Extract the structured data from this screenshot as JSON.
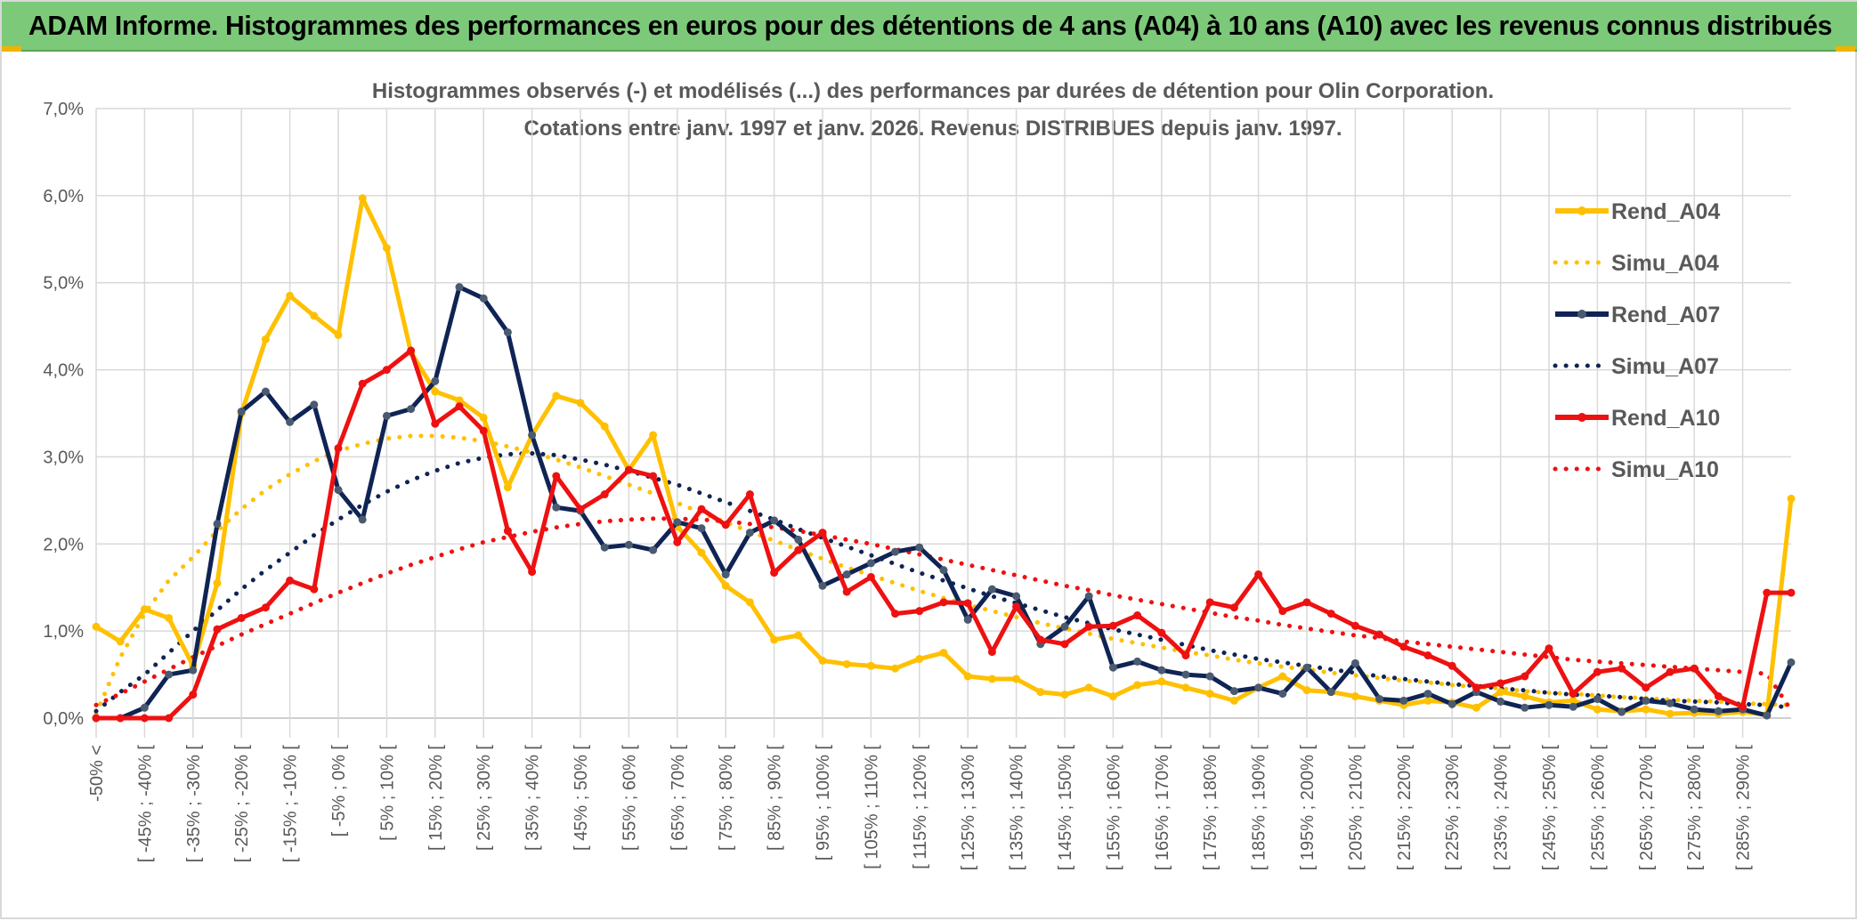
{
  "banner_title": "ADAM Informe. Histogrammes des performances en euros pour des détentions de 4 ans (A04) à 10 ans (A10) avec les revenus connus distribués",
  "chart_data": {
    "type": "line",
    "title": "Histogrammes observés (-) et modélisés (...) des performances par durées de détention pour Olin Corporation.",
    "subtitle": "Cotations entre janv. 1997 et janv. 2026. Revenus DISTRIBUES depuis janv. 1997.",
    "xlabel": "",
    "ylabel": "",
    "ylim": [
      0,
      7
    ],
    "y_ticks": [
      "0,0%",
      "1,0%",
      "2,0%",
      "3,0%",
      "4,0%",
      "5,0%",
      "6,0%",
      "7,0%"
    ],
    "grid": true,
    "legend_position": "right",
    "categories": [
      "-50% <",
      "[ -50% ; -45% [",
      "[ -45% ; -40% [",
      "[ -40% ; -35% [",
      "[ -35% ; -30% [",
      "[ -30% ; -25% [",
      "[ -25% ; -20% [",
      "[ -20% ; -15% [",
      "[ -15% ; -10% [",
      "[ -10% ; -5% [",
      "[ -5% ; 0% [",
      "[ 0% ; 5% [",
      "[ 5% ; 10% [",
      "[ 10% ; 15% [",
      "[ 15% ; 20% [",
      "[ 20% ; 25% [",
      "[ 25% ; 30% [",
      "[ 30% ; 35% [",
      "[ 35% ; 40% [",
      "[ 40% ; 45% [",
      "[ 45% ; 50% [",
      "[ 50% ; 55% [",
      "[ 55% ; 60% [",
      "[ 60% ; 65% [",
      "[ 65% ; 70% [",
      "[ 70% ; 75% [",
      "[ 75% ; 80% [",
      "[ 80% ; 85% [",
      "[ 85% ; 90% [",
      "[ 90% ; 95% [",
      "[ 95% ; 100% [",
      "[ 100% ; 105% [",
      "[ 105% ; 110% [",
      "[ 110% ; 115% [",
      "[ 115% ; 120% [",
      "[ 120% ; 125% [",
      "[ 125% ; 130% [",
      "[ 130% ; 135% [",
      "[ 135% ; 140% [",
      "[ 140% ; 145% [",
      "[ 145% ; 150% [",
      "[ 150% ; 155% [",
      "[ 155% ; 160% [",
      "[ 160% ; 165% [",
      "[ 165% ; 170% [",
      "[ 170% ; 175% [",
      "[ 175% ; 180% [",
      "[ 180% ; 185% [",
      "[ 185% ; 190% [",
      "[ 190% ; 195% [",
      "[ 195% ; 200% [",
      "[ 200% ; 205% [",
      "[ 205% ; 210% [",
      "[ 210% ; 215% [",
      "[ 215% ; 220% [",
      "[ 220% ; 225% [",
      "[ 225% ; 230% [",
      "[ 230% ; 235% [",
      "[ 235% ; 240% [",
      "[ 240% ; 245% [",
      "[ 245% ; 250% [",
      "[ 250% ; 255% [",
      "[ 255% ; 260% [",
      "[ 260% ; 265% [",
      "[ 265% ; 270% [",
      "[ 270% ; 275% [",
      "[ 275% ; 280% [",
      "[ 280% ; 285% [",
      "[ 285% ; 290% [",
      "[ 290% ; 295% [",
      "[ 295% ; 300% ["
    ],
    "visible_tick_labels": [
      "-50% <",
      "[ -45% ; -40% [",
      "[ -35% ; -30% [",
      "[ -25% ; -20% [",
      "[ -15% ; -10% [",
      "[ -5% ; 0% [",
      "[ 5% ; 10% [",
      "[ 15% ; 20% [",
      "[ 25% ; 30% [",
      "[ 35% ; 40% [",
      "[ 45% ; 50% [",
      "[ 55% ; 60% [",
      "[ 65% ; 70% [",
      "[ 75% ; 80% [",
      "[ 85% ; 90% [",
      "[ 95% ; 100% [",
      "[ 105% ; 110% [",
      "[ 115% ; 120% [",
      "[ 125% ; 130% [",
      "[ 135% ; 140% [",
      "[ 145% ; 150% [",
      "[ 155% ; 160% [",
      "[ 165% ; 170% [",
      "[ 175% ; 180% [",
      "[ 185% ; 190% [",
      "[ 195% ; 200% [",
      "[ 205% ; 210% [",
      "[ 215% ; 220% [",
      "[ 225% ; 230% [",
      "[ 235% ; 240% [",
      "[ 245% ; 250% [",
      "[ 255% ; 260% [",
      "[ 265% ; 270% [",
      "[ 275% ; 280% [",
      "[ 285% ; 290% ["
    ],
    "series": [
      {
        "name": "Rend_A04",
        "color": "#ffc000",
        "style": "solid",
        "markers": true,
        "values": [
          1.05,
          0.88,
          1.25,
          1.15,
          0.6,
          1.55,
          3.5,
          4.35,
          4.85,
          4.62,
          4.4,
          5.97,
          5.4,
          4.2,
          3.75,
          3.65,
          3.45,
          2.65,
          3.25,
          3.7,
          3.62,
          3.35,
          2.85,
          3.25,
          2.2,
          1.9,
          1.52,
          1.33,
          0.9,
          0.95,
          0.66,
          0.62,
          0.6,
          0.57,
          0.68,
          0.75,
          0.48,
          0.45,
          0.45,
          0.3,
          0.27,
          0.35,
          0.25,
          0.38,
          0.42,
          0.35,
          0.28,
          0.2,
          0.35,
          0.48,
          0.32,
          0.3,
          0.25,
          0.2,
          0.15,
          0.2,
          0.18,
          0.12,
          0.3,
          0.25,
          0.18,
          0.2,
          0.1,
          0.08,
          0.1,
          0.05,
          0.06,
          0.05,
          0.07,
          0.04,
          2.52
        ]
      },
      {
        "name": "Simu_A04",
        "color": "#ffc000",
        "style": "dotted",
        "markers": false,
        "values": [
          0.05,
          0.7,
          1.2,
          1.58,
          1.85,
          2.15,
          2.4,
          2.62,
          2.8,
          2.95,
          3.07,
          3.15,
          3.21,
          3.24,
          3.24,
          3.22,
          3.18,
          3.12,
          3.05,
          2.97,
          2.88,
          2.78,
          2.68,
          2.58,
          2.47,
          2.36,
          2.25,
          2.14,
          2.04,
          1.93,
          1.83,
          1.73,
          1.64,
          1.55,
          1.46,
          1.38,
          1.3,
          1.23,
          1.16,
          1.09,
          1.03,
          0.97,
          0.91,
          0.86,
          0.81,
          0.76,
          0.72,
          0.67,
          0.63,
          0.59,
          0.56,
          0.52,
          0.49,
          0.46,
          0.43,
          0.41,
          0.38,
          0.36,
          0.34,
          0.31,
          0.29,
          0.28,
          0.26,
          0.24,
          0.23,
          0.21,
          0.2,
          0.19,
          0.17,
          0.16,
          0.15
        ]
      },
      {
        "name": "Rend_A07",
        "color": "#0f2454",
        "style": "solid",
        "markers": true,
        "values": [
          0.0,
          0.0,
          0.12,
          0.5,
          0.55,
          2.23,
          3.52,
          3.75,
          3.4,
          3.6,
          2.62,
          2.28,
          3.47,
          3.55,
          3.87,
          4.95,
          4.82,
          4.43,
          3.25,
          2.42,
          2.38,
          1.96,
          1.99,
          1.93,
          2.25,
          2.18,
          1.65,
          2.13,
          2.27,
          2.05,
          1.52,
          1.65,
          1.78,
          1.91,
          1.96,
          1.7,
          1.13,
          1.48,
          1.4,
          0.85,
          1.05,
          1.4,
          0.58,
          0.65,
          0.55,
          0.5,
          0.48,
          0.31,
          0.35,
          0.28,
          0.58,
          0.3,
          0.63,
          0.22,
          0.2,
          0.28,
          0.16,
          0.3,
          0.19,
          0.12,
          0.15,
          0.13,
          0.22,
          0.07,
          0.2,
          0.17,
          0.1,
          0.08,
          0.1,
          0.03,
          0.64
        ]
      },
      {
        "name": "Simu_A07",
        "color": "#0f2454",
        "style": "dotted",
        "markers": false,
        "values": [
          0.08,
          0.3,
          0.5,
          0.75,
          1.0,
          1.24,
          1.48,
          1.7,
          1.9,
          2.1,
          2.28,
          2.45,
          2.6,
          2.73,
          2.84,
          2.93,
          2.99,
          3.03,
          3.04,
          3.02,
          2.97,
          2.91,
          2.84,
          2.76,
          2.68,
          2.58,
          2.48,
          2.38,
          2.28,
          2.17,
          2.07,
          1.97,
          1.87,
          1.77,
          1.67,
          1.58,
          1.49,
          1.4,
          1.32,
          1.24,
          1.16,
          1.09,
          1.02,
          0.96,
          0.9,
          0.84,
          0.78,
          0.73,
          0.68,
          0.64,
          0.6,
          0.56,
          0.52,
          0.48,
          0.45,
          0.42,
          0.39,
          0.37,
          0.34,
          0.32,
          0.29,
          0.27,
          0.26,
          0.24,
          0.22,
          0.2,
          0.19,
          0.18,
          0.16,
          0.15,
          0.12
        ]
      },
      {
        "name": "Rend_A10",
        "color": "#ee1111",
        "style": "solid",
        "markers": true,
        "values": [
          0.0,
          0.0,
          0.0,
          0.0,
          0.27,
          1.02,
          1.15,
          1.27,
          1.58,
          1.48,
          3.1,
          3.84,
          4.0,
          4.22,
          3.38,
          3.58,
          3.3,
          2.15,
          1.68,
          2.78,
          2.4,
          2.57,
          2.85,
          2.78,
          2.02,
          2.4,
          2.22,
          2.57,
          1.67,
          1.93,
          2.13,
          1.45,
          1.62,
          1.2,
          1.23,
          1.33,
          1.32,
          0.76,
          1.28,
          0.9,
          0.85,
          1.05,
          1.06,
          1.18,
          0.98,
          0.72,
          1.33,
          1.27,
          1.65,
          1.23,
          1.33,
          1.2,
          1.06,
          0.96,
          0.82,
          0.72,
          0.6,
          0.35,
          0.4,
          0.48,
          0.8,
          0.28,
          0.53,
          0.57,
          0.35,
          0.53,
          0.57,
          0.25,
          0.13,
          1.44,
          1.44
        ]
      },
      {
        "name": "Simu_A10",
        "color": "#ee1111",
        "style": "dotted",
        "markers": false,
        "values": [
          0.15,
          0.28,
          0.42,
          0.56,
          0.7,
          0.83,
          0.96,
          1.08,
          1.2,
          1.32,
          1.44,
          1.55,
          1.66,
          1.76,
          1.85,
          1.94,
          2.02,
          2.08,
          2.14,
          2.19,
          2.23,
          2.26,
          2.28,
          2.29,
          2.29,
          2.28,
          2.26,
          2.23,
          2.19,
          2.15,
          2.1,
          2.05,
          2.0,
          1.94,
          1.88,
          1.82,
          1.76,
          1.7,
          1.64,
          1.58,
          1.52,
          1.47,
          1.41,
          1.36,
          1.31,
          1.26,
          1.21,
          1.16,
          1.12,
          1.07,
          1.03,
          0.99,
          0.95,
          0.92,
          0.88,
          0.85,
          0.82,
          0.79,
          0.76,
          0.73,
          0.7,
          0.67,
          0.65,
          0.63,
          0.61,
          0.59,
          0.57,
          0.55,
          0.53,
          0.51,
          0.09
        ]
      }
    ]
  }
}
